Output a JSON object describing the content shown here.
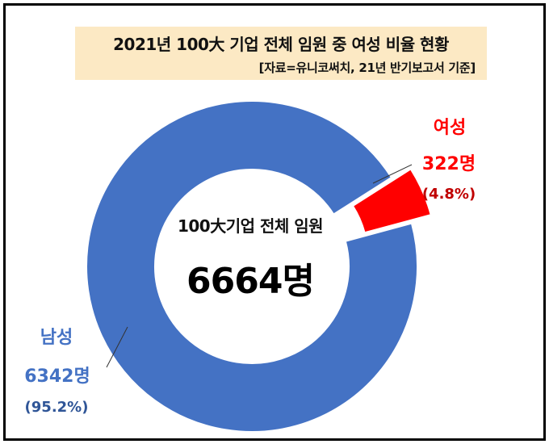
{
  "header": {
    "title": "2021년 100大 기업 전체 임원 중 여성 비율 현황",
    "source": "[자료=유니코써치, 21년 반기보고서 기준]"
  },
  "center": {
    "label": "100大기업 전체 임원",
    "total": "6664명"
  },
  "labels": {
    "female": {
      "name": "여성",
      "count": "322명",
      "pct": "(4.8%)"
    },
    "male": {
      "name": "남성",
      "count": "6342명",
      "pct": "(95.2%)"
    }
  },
  "colors": {
    "male": "#4472C4",
    "female": "#FF0000",
    "title_bg": "#FCE9C4"
  },
  "chart_data": {
    "type": "pie",
    "donut": true,
    "title": "2021년 100大 기업 전체 임원 중 여성 비율 현황",
    "categories": [
      "남성",
      "여성"
    ],
    "values": [
      6342,
      322
    ],
    "percentages": [
      95.2,
      4.8
    ],
    "total": 6664,
    "exploded": "여성"
  }
}
